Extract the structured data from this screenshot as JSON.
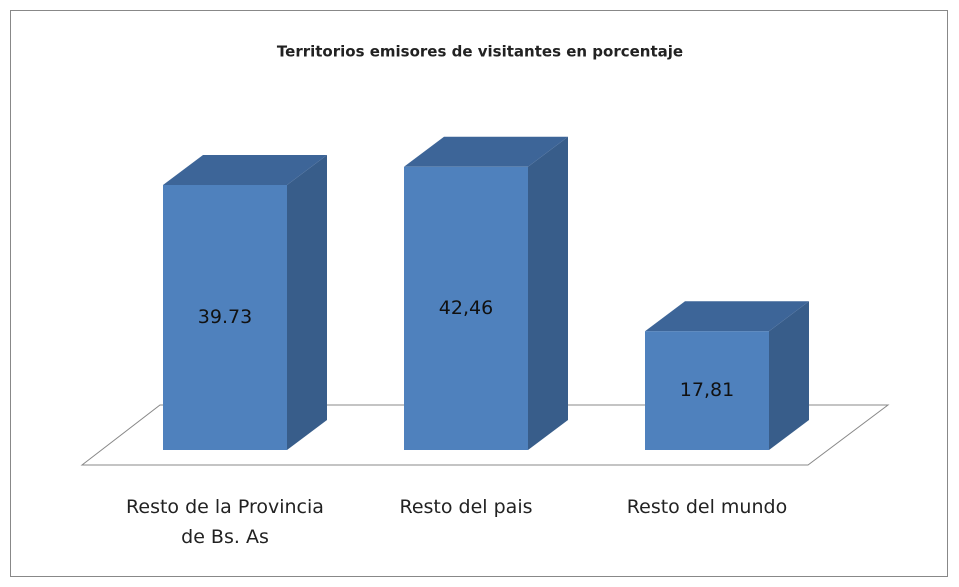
{
  "chart_data": {
    "type": "bar3d",
    "title": "Territorios emisores de visitantes en porcentaje",
    "categories": [
      "Resto de la Provincia de Bs. As",
      "Resto del pais",
      "Resto del mundo"
    ],
    "values": [
      39.73,
      42.46,
      17.81
    ],
    "value_labels": [
      "39.73",
      "42,46",
      "17,81"
    ],
    "color": "#4f81bd"
  }
}
